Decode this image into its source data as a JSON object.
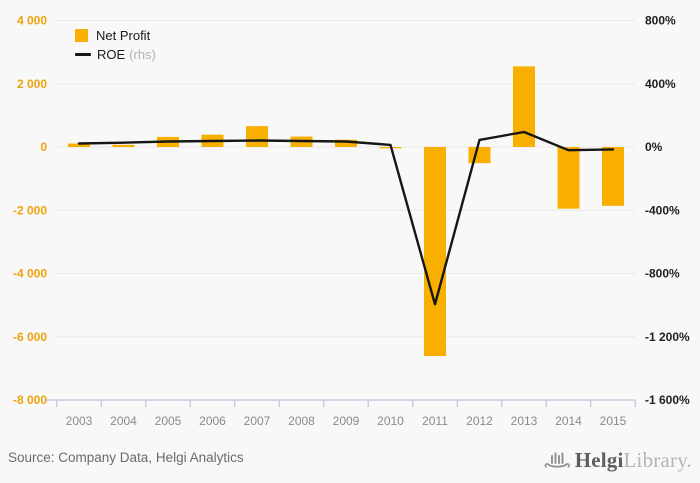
{
  "chart_data": {
    "type": "bar",
    "title": "",
    "categories": [
      "2003",
      "2004",
      "2005",
      "2006",
      "2007",
      "2008",
      "2009",
      "2010",
      "2011",
      "2012",
      "2013",
      "2014",
      "2015"
    ],
    "series": [
      {
        "name": "Net Profit",
        "type": "bar",
        "axis": "left",
        "color": "#F9AF00",
        "values": [
          110,
          70,
          320,
          390,
          660,
          330,
          230,
          -40,
          -6610,
          -510,
          2550,
          -1950,
          -1860
        ]
      },
      {
        "name": "ROE (rhs)",
        "type": "line",
        "axis": "right",
        "color": "#161616",
        "values": [
          22,
          27,
          35,
          38,
          41,
          38,
          35,
          13,
          -995,
          45,
          95,
          -20,
          -15
        ]
      }
    ],
    "left_axis": {
      "ticks": [
        "4 000",
        "2 000",
        "0",
        "-2 000",
        "-4 000",
        "-6 000",
        "-8 000"
      ],
      "values": [
        4000,
        2000,
        0,
        -2000,
        -4000,
        -6000,
        -8000
      ],
      "range": [
        -8000,
        4000
      ],
      "color": "#EDA30A"
    },
    "right_axis": {
      "ticks": [
        "800%",
        "400%",
        "0%",
        "-400%",
        "-800%",
        "-1 200%",
        "-1 600%"
      ],
      "values": [
        800,
        400,
        0,
        -400,
        -800,
        -1200,
        -1600
      ],
      "range": [
        -1600,
        800
      ],
      "color": "#1f1f1f"
    },
    "grid": true,
    "legend_position": "top-left"
  },
  "legend": {
    "net_profit": "Net Profit",
    "roe": "ROE",
    "roe_suffix": "(rhs)"
  },
  "footer": {
    "source": "Source: Company Data, Helgi Analytics",
    "logo_primary": "Helgi",
    "logo_secondary": "Library."
  },
  "colors": {
    "background": "#f8f8f8",
    "grid": "#e8e8e8",
    "axis_line": "#bcc5dd",
    "year_label": "#8a8a8a",
    "source_text": "#6b6b6b"
  }
}
